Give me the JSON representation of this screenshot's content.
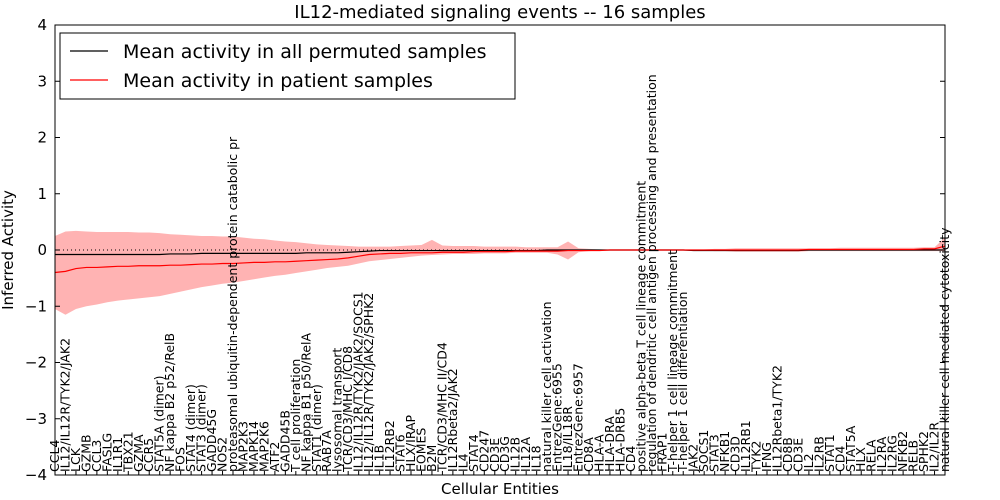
{
  "chart_data": {
    "type": "line",
    "title": "IL12-mediated signaling events -- 16 samples",
    "xlabel": "Cellular Entities",
    "ylabel": "Inferred Activity",
    "ylim": [
      -4,
      4
    ],
    "yticks": [
      "−4",
      "−3",
      "−2",
      "−1",
      "0",
      "1",
      "2",
      "3",
      "4"
    ],
    "grid": false,
    "legend_position": "top-left",
    "colors": {
      "permuted": "#000000",
      "patient": "#ff0000",
      "band": "#ff9999",
      "zero_line": "#000000"
    },
    "categories": [
      "CCL4",
      "IL12/IL12R/TYK2/JAK2",
      "LCK",
      "GZMB",
      "CCL3",
      "FASLG",
      "IL1R1",
      "TBX21",
      "GZMA",
      "CCR5",
      "STAT5A (dimer)",
      "NF kappa B2 p52/RelB",
      "FOS",
      "STAT4 (dimer)",
      "STAT3 (dimer)",
      "GADD45G",
      "NOS2",
      "proteasomal ubiquitin-dependent protein catabolic pr",
      "MAP2K3",
      "MAPK14",
      "MAP2K6",
      "ATF2",
      "GADD45B",
      "T cell proliferation",
      "NF kappa B1 p50/RelA",
      "STAT1 (dimer)",
      "RAB7A",
      "lysosomal transport",
      "TCR/CD3/MHC I/CD8",
      "IL12/IL12R/TYK2/JAK2/SOCS1",
      "IL12/IL12R/TYK2/JAK2/SPHK2",
      "IL1B",
      "IL12RB2",
      "STAT6",
      "HLX/IRAP",
      "EOMES",
      "B2M",
      "TCR/CD3/MHC II/CD4",
      "IL12Rbeta2/JAK2",
      "IL4",
      "STAT4",
      "CD247",
      "CD3E",
      "CD3G",
      "IL12B",
      "IL12A",
      "IL18",
      "natural killer cell activation",
      "EntrezGene:6955",
      "IL18/IL18R",
      "EntrezGene:6957",
      "CD8A",
      "HLA-A",
      "HLA-DRA",
      "HLA-DRB5",
      "CD4",
      "positive alpha-beta T cell lineage commitment",
      "regulation of dendritic cell antigen processing and presentation",
      "FRAP1",
      "T-helper 1 cell lineage commitment",
      "T-helper 1 cell differentiation",
      "JAK2",
      "SOCS1",
      "STAT3",
      "NFKB1",
      "CD3D",
      "IL12RB1",
      "TYK2",
      "IFNG",
      "IL12Rbeta1/TYK2",
      "CD8B",
      "CD3E",
      "IL2",
      "IL2RB",
      "STAT1",
      "CD4",
      "STAT5A",
      "HLX",
      "RELA",
      "IL2RA",
      "IL2RG",
      "NFKB2",
      "RELB",
      "SPHK2",
      "IL2/IL2R",
      "natural killer cell mediated cytotoxicity"
    ],
    "series": [
      {
        "name": "Mean activity in all permuted samples",
        "values": [
          -0.08,
          -0.08,
          -0.08,
          -0.08,
          -0.08,
          -0.08,
          -0.08,
          -0.08,
          -0.08,
          -0.08,
          -0.08,
          -0.07,
          -0.07,
          -0.07,
          -0.06,
          -0.06,
          -0.06,
          -0.06,
          -0.06,
          -0.06,
          -0.06,
          -0.06,
          -0.06,
          -0.06,
          -0.05,
          -0.05,
          -0.05,
          -0.05,
          -0.04,
          -0.03,
          -0.02,
          -0.01,
          -0.01,
          -0.01,
          -0.01,
          -0.01,
          -0.01,
          -0.01,
          -0.01,
          -0.01,
          -0.01,
          -0.01,
          -0.01,
          -0.01,
          -0.01,
          -0.01,
          -0.01,
          0,
          0,
          0,
          0,
          0,
          0,
          0,
          0,
          0,
          0,
          0,
          0,
          0,
          0,
          -0.01,
          -0.01,
          -0.01,
          -0.01,
          -0.01,
          -0.01,
          -0.01,
          -0.01,
          -0.01,
          -0.01,
          -0.01,
          0,
          0,
          0,
          0,
          0,
          0,
          0,
          0,
          0,
          0,
          0,
          0,
          0,
          0
        ]
      },
      {
        "name": "Mean activity in patient samples",
        "values": [
          -0.4,
          -0.38,
          -0.33,
          -0.31,
          -0.31,
          -0.3,
          -0.29,
          -0.29,
          -0.28,
          -0.28,
          -0.28,
          -0.27,
          -0.27,
          -0.26,
          -0.25,
          -0.25,
          -0.24,
          -0.24,
          -0.23,
          -0.22,
          -0.22,
          -0.21,
          -0.21,
          -0.2,
          -0.19,
          -0.18,
          -0.17,
          -0.16,
          -0.14,
          -0.11,
          -0.08,
          -0.07,
          -0.06,
          -0.06,
          -0.05,
          -0.05,
          -0.05,
          -0.04,
          -0.04,
          -0.04,
          -0.03,
          -0.03,
          -0.03,
          -0.03,
          -0.02,
          -0.02,
          -0.02,
          -0.02,
          -0.02,
          -0.01,
          -0.01,
          -0.01,
          -0.01,
          0,
          0,
          0,
          0,
          0,
          0,
          0,
          0,
          0,
          0,
          0,
          0,
          0,
          0,
          0,
          0,
          0,
          0,
          0,
          0.01,
          0.01,
          0.01,
          0.01,
          0.01,
          0.01,
          0.01,
          0.01,
          0.01,
          0.01,
          0.01,
          0.02,
          0.02,
          0.07
        ]
      }
    ],
    "band_upper": [
      0.25,
      0.33,
      0.34,
      0.33,
      0.32,
      0.32,
      0.32,
      0.32,
      0.31,
      0.31,
      0.3,
      0.28,
      0.27,
      0.26,
      0.25,
      0.25,
      0.24,
      0.24,
      0.22,
      0.2,
      0.19,
      0.17,
      0.15,
      0.14,
      0.12,
      0.1,
      0.09,
      0.08,
      0.07,
      0.06,
      0.06,
      0.06,
      0.06,
      0.07,
      0.08,
      0.09,
      0.18,
      0.08,
      0.07,
      0.07,
      0.07,
      0.06,
      0.06,
      0.06,
      0.06,
      0.05,
      0.05,
      0.05,
      0.05,
      0.15,
      0.03,
      0.02,
      0.01,
      0.01,
      0.01,
      0.01,
      0.01,
      0.01,
      0.01,
      0.01,
      0.01,
      0.01,
      0.01,
      0.02,
      0.02,
      0.03,
      0.03,
      0.03,
      0.03,
      0.03,
      0.03,
      0.03,
      0.03,
      0.03,
      0.03,
      0.04,
      0.04,
      0.04,
      0.04,
      0.04,
      0.04,
      0.04,
      0.04,
      0.05,
      0.05,
      0.22
    ],
    "band_lower": [
      -1.05,
      -1.15,
      -1.05,
      -1.0,
      -0.97,
      -0.93,
      -0.9,
      -0.88,
      -0.86,
      -0.84,
      -0.82,
      -0.78,
      -0.74,
      -0.7,
      -0.66,
      -0.63,
      -0.6,
      -0.58,
      -0.55,
      -0.52,
      -0.49,
      -0.46,
      -0.44,
      -0.41,
      -0.38,
      -0.35,
      -0.32,
      -0.3,
      -0.28,
      -0.24,
      -0.2,
      -0.18,
      -0.16,
      -0.14,
      -0.12,
      -0.1,
      -0.09,
      -0.08,
      -0.07,
      -0.07,
      -0.07,
      -0.06,
      -0.06,
      -0.06,
      -0.05,
      -0.05,
      -0.05,
      -0.05,
      -0.08,
      -0.17,
      -0.04,
      -0.02,
      -0.01,
      -0.01,
      -0.01,
      -0.01,
      -0.01,
      -0.01,
      -0.01,
      -0.01,
      -0.01,
      -0.01,
      -0.01,
      -0.02,
      -0.02,
      -0.03,
      -0.03,
      -0.03,
      -0.03,
      -0.03,
      -0.03,
      -0.03,
      -0.02,
      -0.02,
      -0.02,
      -0.02,
      -0.02,
      -0.02,
      -0.02,
      -0.02,
      -0.02,
      -0.02,
      -0.02,
      -0.02,
      -0.02,
      -0.02
    ]
  }
}
